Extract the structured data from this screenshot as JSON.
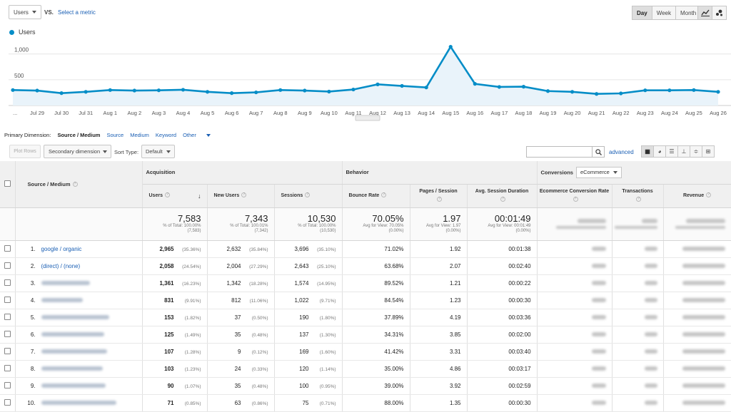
{
  "toolbar": {
    "metric_select": "Users",
    "vs_label": "VS.",
    "select_metric": "Select a metric",
    "period_buttons": [
      "Day",
      "Week",
      "Month"
    ],
    "selected_period": "Day",
    "view_icons": [
      "line-chart-icon",
      "motion-chart-icon"
    ]
  },
  "legend": {
    "label": "Users",
    "color": "#058dc7"
  },
  "chart_data": {
    "type": "area",
    "series": [
      {
        "name": "Users",
        "values": [
          300,
          290,
          240,
          265,
          300,
          290,
          295,
          305,
          265,
          240,
          255,
          300,
          290,
          270,
          310,
          410,
          380,
          350,
          1140,
          420,
          360,
          365,
          280,
          265,
          225,
          235,
          295,
          295,
          300,
          265
        ]
      }
    ],
    "x_labels": [
      "...",
      "Jul 29",
      "Jul 30",
      "Jul 31",
      "Aug 1",
      "Aug 2",
      "Aug 3",
      "Aug 4",
      "Aug 5",
      "Aug 6",
      "Aug 7",
      "Aug 8",
      "Aug 9",
      "Aug 10",
      "Aug 11",
      "Aug 12",
      "Aug 13",
      "Aug 14",
      "Aug 15",
      "Aug 16",
      "Aug 17",
      "Aug 18",
      "Aug 19",
      "Aug 20",
      "Aug 21",
      "Aug 22",
      "Aug 23",
      "Aug 24",
      "Aug 25",
      "Aug 26"
    ],
    "y_ticks": [
      "1,000",
      "500"
    ],
    "ylim": [
      0,
      1300
    ],
    "grid": true,
    "color": "#058dc7"
  },
  "dimension": {
    "label": "Primary Dimension:",
    "selected": "Source / Medium",
    "options": [
      "Source",
      "Medium",
      "Keyword",
      "Other"
    ]
  },
  "table_toolbar": {
    "plot_rows": "Plot Rows",
    "secondary_dimension": "Secondary dimension",
    "sort_label": "Sort Type:",
    "sort_value": "Default",
    "advanced": "advanced"
  },
  "table": {
    "groups": {
      "acquisition": "Acquisition",
      "behavior": "Behavior",
      "conversions": "Conversions",
      "conversions_select": "eCommerce"
    },
    "headers": {
      "dimension": "Source / Medium",
      "users": "Users",
      "new_users": "New Users",
      "sessions": "Sessions",
      "bounce_rate": "Bounce Rate",
      "pages_session": "Pages / Session",
      "avg_duration": "Avg. Session Duration",
      "ecom_rate": "Ecommerce Conversion Rate",
      "transactions": "Transactions",
      "revenue": "Revenue"
    },
    "totals": {
      "users": {
        "value": "7,583",
        "l1": "% of Total: 100.00%",
        "l2": "(7,583)"
      },
      "new_users": {
        "value": "7,343",
        "l1": "% of Total: 100.01%",
        "l2": "(7,342)"
      },
      "sessions": {
        "value": "10,530",
        "l1": "% of Total: 100.00%",
        "l2": "(10,530)"
      },
      "bounce_rate": {
        "value": "70.05%",
        "l1": "Avg for View: 70.05%",
        "l2": "(0.00%)"
      },
      "pages_session": {
        "value": "1.97",
        "l1": "Avg for View: 1.97",
        "l2": "(0.00%)"
      },
      "avg_duration": {
        "value": "00:01:49",
        "l1": "Avg for View: 00:01:49",
        "l2": "(0.00%)"
      }
    },
    "rows": [
      {
        "idx": "1.",
        "src": "google / organic",
        "users": "2,965",
        "users_pct": "(35.36%)",
        "new_users": "2,632",
        "new_pct": "(35.84%)",
        "sessions": "3,696",
        "sess_pct": "(35.10%)",
        "bounce": "71.02%",
        "pages": "1.92",
        "duration": "00:01:38"
      },
      {
        "idx": "2.",
        "src": "(direct) / (none)",
        "users": "2,058",
        "users_pct": "(24.54%)",
        "new_users": "2,004",
        "new_pct": "(27.29%)",
        "sessions": "2,643",
        "sess_pct": "(25.10%)",
        "bounce": "63.68%",
        "pages": "2.07",
        "duration": "00:02:40"
      },
      {
        "idx": "3.",
        "src": "",
        "users": "1,361",
        "users_pct": "(16.23%)",
        "new_users": "1,342",
        "new_pct": "(18.28%)",
        "sessions": "1,574",
        "sess_pct": "(14.95%)",
        "bounce": "89.52%",
        "pages": "1.21",
        "duration": "00:00:22"
      },
      {
        "idx": "4.",
        "src": "",
        "users": "831",
        "users_pct": "(9.91%)",
        "new_users": "812",
        "new_pct": "(11.06%)",
        "sessions": "1,022",
        "sess_pct": "(9.71%)",
        "bounce": "84.54%",
        "pages": "1.23",
        "duration": "00:00:30"
      },
      {
        "idx": "5.",
        "src": "",
        "users": "153",
        "users_pct": "(1.82%)",
        "new_users": "37",
        "new_pct": "(0.50%)",
        "sessions": "190",
        "sess_pct": "(1.80%)",
        "bounce": "37.89%",
        "pages": "4.19",
        "duration": "00:03:36"
      },
      {
        "idx": "6.",
        "src": "",
        "users": "125",
        "users_pct": "(1.49%)",
        "new_users": "35",
        "new_pct": "(0.48%)",
        "sessions": "137",
        "sess_pct": "(1.30%)",
        "bounce": "34.31%",
        "pages": "3.85",
        "duration": "00:02:00"
      },
      {
        "idx": "7.",
        "src": "",
        "users": "107",
        "users_pct": "(1.28%)",
        "new_users": "9",
        "new_pct": "(0.12%)",
        "sessions": "169",
        "sess_pct": "(1.60%)",
        "bounce": "41.42%",
        "pages": "3.31",
        "duration": "00:03:40"
      },
      {
        "idx": "8.",
        "src": "",
        "users": "103",
        "users_pct": "(1.23%)",
        "new_users": "24",
        "new_pct": "(0.33%)",
        "sessions": "120",
        "sess_pct": "(1.14%)",
        "bounce": "35.00%",
        "pages": "4.86",
        "duration": "00:03:17"
      },
      {
        "idx": "9.",
        "src": "",
        "users": "90",
        "users_pct": "(1.07%)",
        "new_users": "35",
        "new_pct": "(0.48%)",
        "sessions": "100",
        "sess_pct": "(0.95%)",
        "bounce": "39.00%",
        "pages": "3.92",
        "duration": "00:02:59"
      },
      {
        "idx": "10.",
        "src": "",
        "users": "71",
        "users_pct": "(0.85%)",
        "new_users": "63",
        "new_pct": "(0.86%)",
        "sessions": "75",
        "sess_pct": "(0.71%)",
        "bounce": "88.00%",
        "pages": "1.35",
        "duration": "00:00:30"
      }
    ]
  }
}
